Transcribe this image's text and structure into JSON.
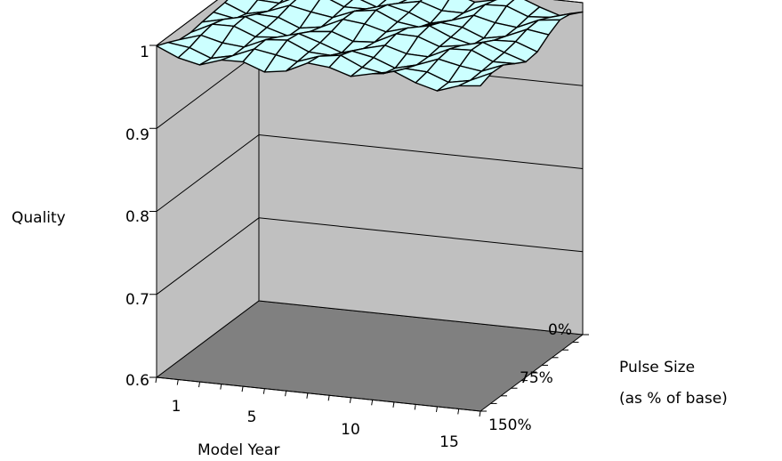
{
  "chart_data": {
    "type": "surface",
    "title": "",
    "zlabel": "Quality",
    "xlabel": "Model Year",
    "ylabel": [
      "Pulse Size",
      "(as % of base)"
    ],
    "zlim": [
      0.6,
      1.0
    ],
    "z_ticks": [
      "0.6",
      "0.7",
      "0.8",
      "0.9",
      "1"
    ],
    "x_ticks": [
      "1",
      "5",
      "10",
      "15"
    ],
    "y_ticks": [
      "0%",
      "75%",
      "150%"
    ],
    "x_range": [
      1,
      16
    ],
    "grid": true,
    "surface_color": "#ccffff",
    "wall_color": "#c0c0c0",
    "floor_color": "#808080",
    "surface_approx_value": 0.99,
    "surface_range": [
      0.975,
      1.0
    ]
  }
}
